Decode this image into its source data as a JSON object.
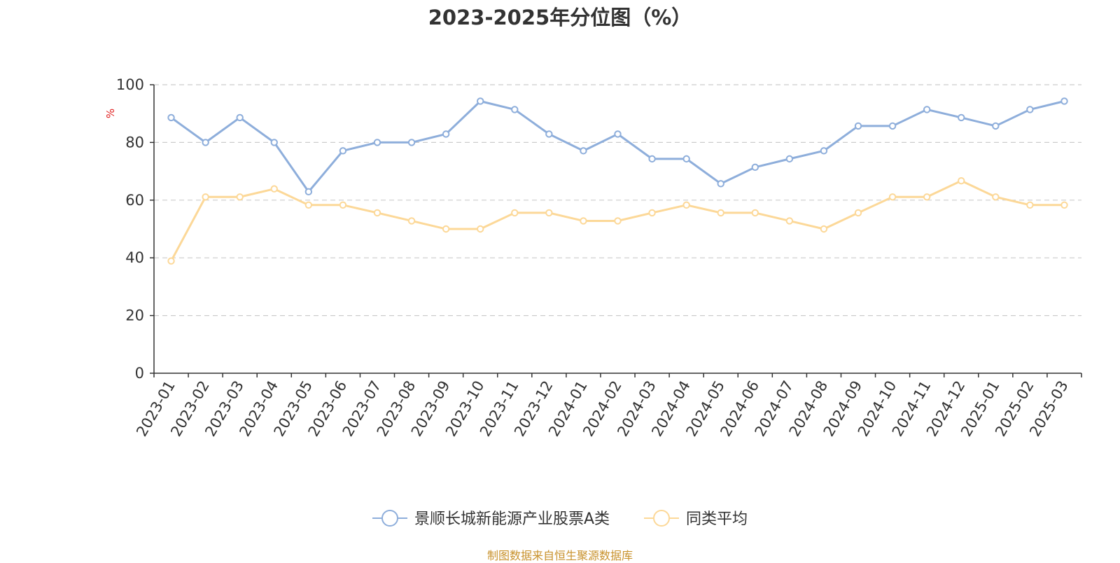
{
  "title": "2023-2025年分位图（%）",
  "source_note": "制图数据来自恒生聚源数据库",
  "colors": {
    "series_1": "#8eaedb",
    "series_2": "#fcd898",
    "grid": "#cccccc",
    "axis": "#333333",
    "ylabel": "#e02020"
  },
  "chart_data": {
    "type": "line",
    "title": "2023-2025年分位图（%）",
    "xlabel": "",
    "ylabel": "%",
    "ylim": [
      0,
      100
    ],
    "yticks": [
      0,
      20,
      40,
      60,
      80,
      100
    ],
    "grid": true,
    "legend_position": "bottom-center",
    "categories": [
      "2023-01",
      "2023-02",
      "2023-03",
      "2023-04",
      "2023-05",
      "2023-06",
      "2023-07",
      "2023-08",
      "2023-09",
      "2023-10",
      "2023-11",
      "2023-12",
      "2024-01",
      "2024-02",
      "2024-03",
      "2024-04",
      "2024-05",
      "2024-06",
      "2024-07",
      "2024-08",
      "2024-09",
      "2024-10",
      "2024-11",
      "2024-12",
      "2025-01",
      "2025-02",
      "2025-03"
    ],
    "series": [
      {
        "name": "景顺长城新能源产业股票A类",
        "values": [
          88.6,
          80.0,
          88.6,
          80.0,
          62.9,
          77.1,
          80.0,
          80.0,
          82.9,
          94.3,
          91.4,
          82.9,
          77.1,
          82.9,
          74.3,
          74.3,
          65.7,
          71.4,
          74.3,
          77.1,
          85.7,
          85.7,
          91.4,
          88.6,
          85.7,
          91.4,
          94.3
        ]
      },
      {
        "name": "同类平均",
        "values": [
          38.9,
          61.1,
          61.1,
          63.9,
          58.3,
          58.3,
          55.6,
          52.8,
          50.0,
          50.0,
          55.6,
          55.6,
          52.8,
          52.8,
          55.6,
          58.3,
          55.6,
          55.6,
          52.8,
          50.0,
          55.6,
          61.1,
          61.1,
          66.7,
          61.1,
          58.3,
          58.3
        ]
      }
    ]
  }
}
